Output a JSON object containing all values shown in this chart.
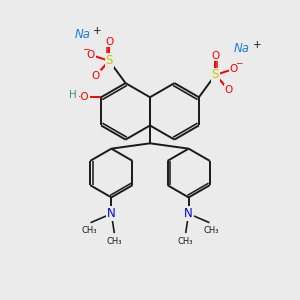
{
  "bg_color": "#ebebeb",
  "figsize": [
    3.0,
    3.0
  ],
  "dpi": 100,
  "bond_color": "#1a1a1a",
  "O_color": "#ff0000",
  "S_color": "#c8c800",
  "N_color": "#0000ee",
  "Na_color": "#1e7fd4",
  "H_color": "#3a9090",
  "bond_lw": 1.4,
  "font_size": 7.5,
  "xlim": [
    0,
    10
  ],
  "ylim": [
    0,
    10
  ]
}
